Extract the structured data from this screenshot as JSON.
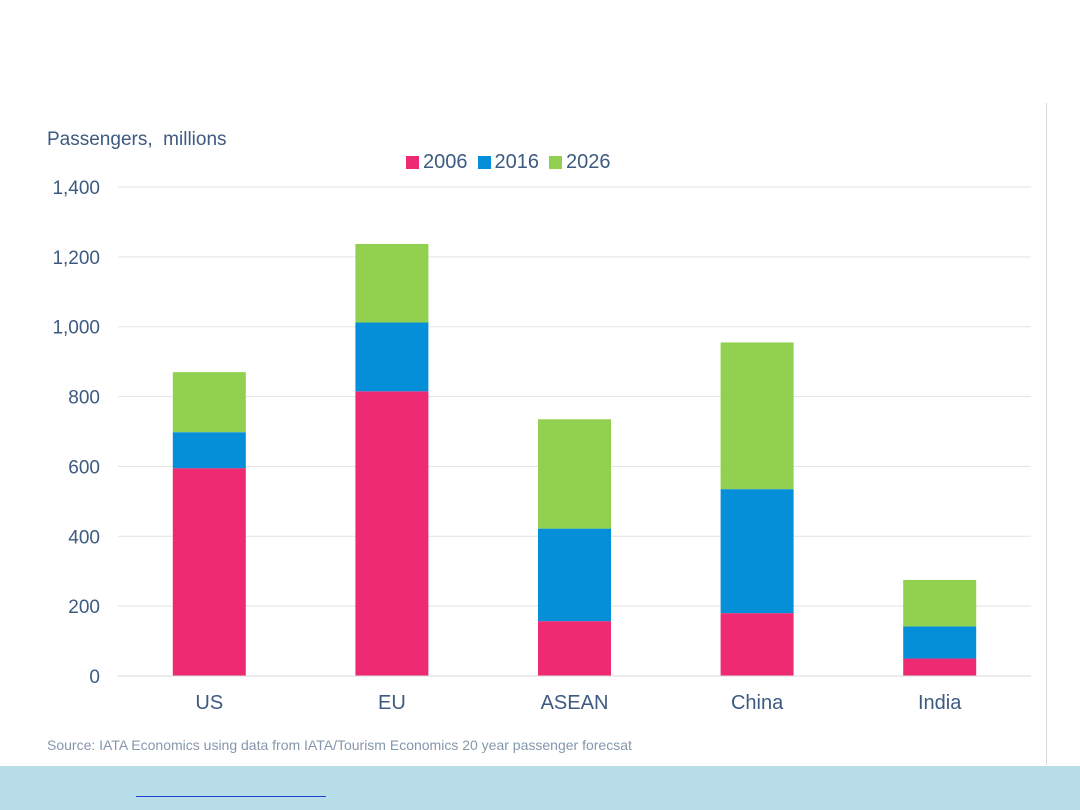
{
  "chart_data": {
    "type": "bar",
    "stacked": true,
    "ylabel": "Passengers,  millions",
    "xlabel": "",
    "ylim": [
      0,
      1400
    ],
    "yticks": [
      0,
      200,
      400,
      600,
      800,
      1000,
      1200,
      1400
    ],
    "ytick_labels": [
      "0",
      "200",
      "400",
      "600",
      "800",
      "1,000",
      "1,200",
      "1,400"
    ],
    "categories": [
      "US",
      "EU",
      "ASEAN",
      "China",
      "India"
    ],
    "series": [
      {
        "name": "2006",
        "color": "#ee2b72",
        "values": [
          595,
          815,
          157,
          180,
          50
        ]
      },
      {
        "name": "2016",
        "color": "#058fd9",
        "values": [
          103,
          197,
          265,
          355,
          92
        ]
      },
      {
        "name": "2026",
        "color": "#92d050",
        "values": [
          172,
          225,
          313,
          420,
          133
        ]
      }
    ],
    "grid": true,
    "legend_position": "top-center",
    "source": "Source: IATA Economics using data from IATA/Tourism Economics 20 year passenger forecsat"
  }
}
